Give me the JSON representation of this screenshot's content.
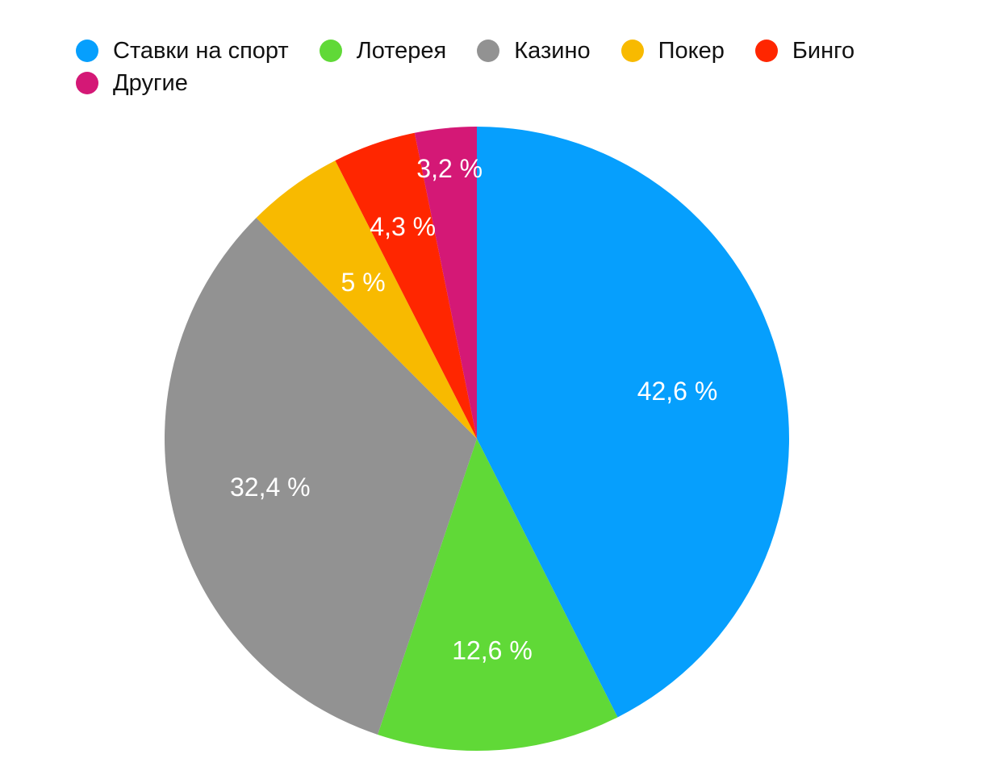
{
  "chart_data": {
    "type": "pie",
    "categories": [
      "Ставки на спорт",
      "Лотерея",
      "Казино",
      "Покер",
      "Бинго",
      "Другие"
    ],
    "values": [
      42.6,
      12.6,
      32.4,
      5,
      4.3,
      3.2
    ],
    "data_labels": [
      "42,6 %",
      "12,6 %",
      "32,4 %",
      "5 %",
      "4,3 %",
      "3,2 %"
    ],
    "colors": [
      "#069FFD",
      "#60D937",
      "#929292",
      "#F8BA00",
      "#FF2600",
      "#D41876"
    ],
    "legend_position": "top-left",
    "start": "top, clockwise"
  }
}
